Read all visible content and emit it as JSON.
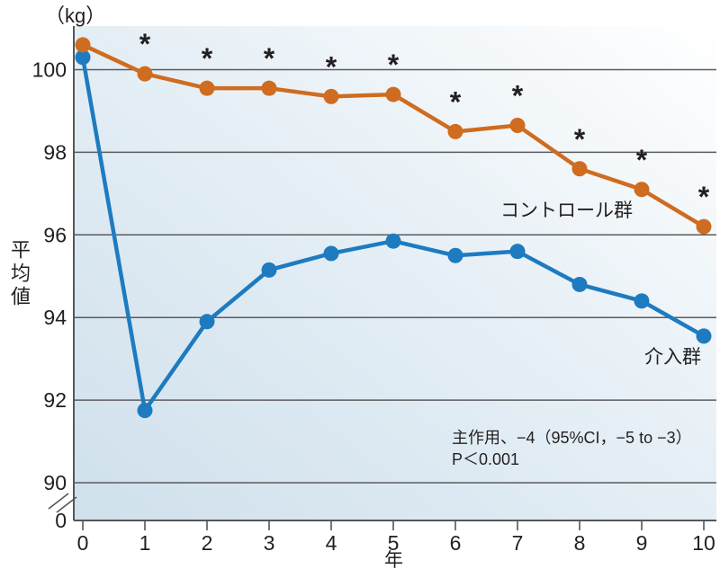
{
  "chart_data": {
    "type": "line",
    "title": "",
    "unit_label": "（kg）",
    "ylabel": "平均値",
    "xlabel": "年",
    "x": [
      0,
      1,
      2,
      3,
      4,
      5,
      6,
      7,
      8,
      9,
      10
    ],
    "x_tick_labels": [
      "0",
      "1",
      "2",
      "3",
      "4",
      "5",
      "6",
      "7",
      "8",
      "9",
      "10"
    ],
    "y_ticks": [
      100,
      98,
      96,
      94,
      92,
      90
    ],
    "y_axis_zero_label": "0",
    "axis_break": true,
    "grid": true,
    "ylim": [
      90,
      101.2
    ],
    "legend_position": "inline-labels",
    "series": [
      {
        "name": "介入群",
        "color": "#1e7bc0",
        "values": [
          100.3,
          91.75,
          93.9,
          95.15,
          95.55,
          95.85,
          95.5,
          95.6,
          94.8,
          94.4,
          93.55
        ]
      },
      {
        "name": "コントロール群",
        "color": "#cf6c20",
        "values": [
          100.6,
          99.9,
          99.55,
          99.55,
          99.35,
          99.4,
          98.5,
          98.65,
          97.6,
          97.1,
          96.2
        ],
        "significance_marker": "*",
        "significant_x": [
          1,
          2,
          3,
          4,
          5,
          6,
          7,
          8,
          9,
          10
        ]
      }
    ],
    "annotation": [
      "主作用、−4（95%CI，−5 to −3）",
      "P＜0.001"
    ]
  },
  "labels": {
    "unit": "（kg）",
    "y_axis": "平均値",
    "x_axis": "年",
    "control_series": "コントロール群",
    "intervention_series": "介入群",
    "annotation_line1": "主作用、−4（95%CI，−5 to −3）",
    "annotation_line2": "P＜0.001"
  },
  "colors": {
    "control": "#cf6c20",
    "intervention": "#1e7bc0",
    "grid": "#5a5b5e",
    "axis": "#55565a",
    "text": "#231f20",
    "plot_bg_left": "#cfe0ec",
    "plot_bg_mid": "#e4eef5",
    "plot_bg_right": "#ffffff"
  }
}
